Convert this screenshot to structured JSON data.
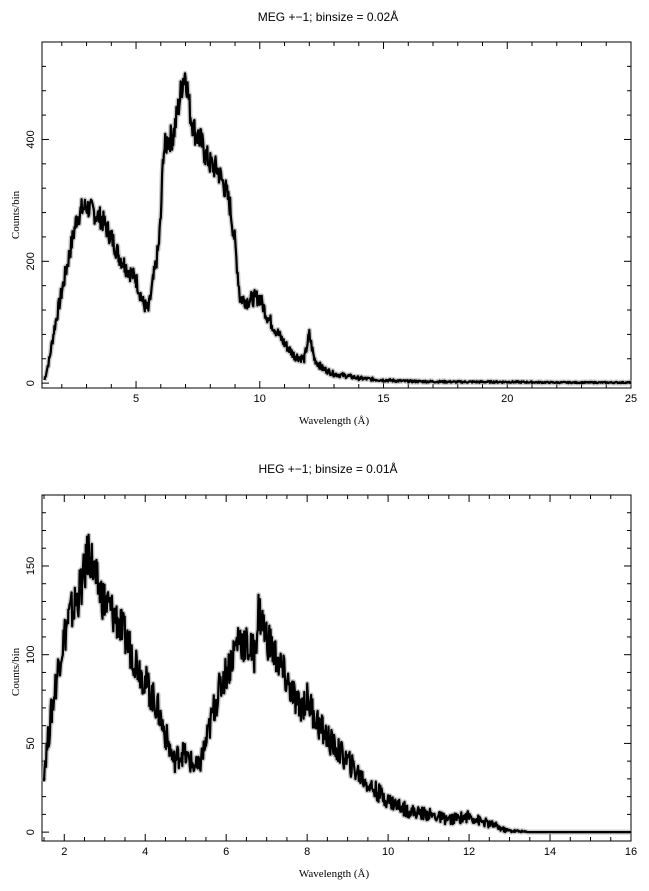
{
  "chart_data": [
    {
      "type": "line",
      "title": "MEG +−1; binsize = 0.02Å",
      "xlabel": "Wavelength (Å)",
      "ylabel": "Counts/bin",
      "xlim": [
        1.2,
        25
      ],
      "ylim": [
        -8,
        560
      ],
      "xticks": [
        5,
        10,
        15,
        20,
        25
      ],
      "yticks": [
        0,
        200,
        400
      ],
      "series": [
        {
          "x": [
            1.3,
            1.5,
            1.7,
            2.0,
            2.3,
            2.6,
            2.8,
            3.0,
            3.3,
            3.6,
            4.0,
            4.3,
            4.6,
            5.0,
            5.3,
            5.5,
            5.7,
            5.9,
            6.0,
            6.1,
            6.3,
            6.5,
            6.7,
            6.9,
            7.0,
            7.2,
            7.4,
            7.6,
            7.8,
            8.0,
            8.3,
            8.6,
            8.8,
            9.0,
            9.2,
            9.5,
            9.8,
            10.0,
            10.3,
            10.6,
            11.0,
            11.4,
            11.8,
            12.0,
            12.2,
            12.5,
            13.0,
            13.5,
            14.0,
            15.0,
            16.0,
            18.0,
            20.0,
            22.0,
            25.0
          ],
          "values": [
            5,
            40,
            90,
            150,
            210,
            270,
            285,
            290,
            280,
            270,
            240,
            210,
            190,
            170,
            130,
            120,
            170,
            220,
            270,
            380,
            400,
            405,
            450,
            500,
            510,
            440,
            410,
            400,
            375,
            360,
            350,
            320,
            290,
            230,
            140,
            135,
            140,
            140,
            110,
            90,
            65,
            45,
            40,
            80,
            40,
            25,
            15,
            12,
            8,
            5,
            3,
            2,
            2,
            1,
            1
          ]
        }
      ]
    },
    {
      "type": "line",
      "title": "HEG +−1; binsize = 0.01Å",
      "xlabel": "Wavelength (Å)",
      "ylabel": "Counts/bin",
      "xlim": [
        1.45,
        16
      ],
      "ylim": [
        -5,
        190
      ],
      "xticks": [
        2,
        4,
        6,
        8,
        10,
        12,
        14,
        16
      ],
      "yticks": [
        0,
        50,
        100,
        150
      ],
      "series": [
        {
          "x": [
            1.5,
            1.7,
            1.9,
            2.1,
            2.3,
            2.5,
            2.6,
            2.8,
            3.0,
            3.3,
            3.6,
            3.9,
            4.1,
            4.3,
            4.5,
            4.7,
            4.9,
            5.1,
            5.3,
            5.5,
            5.7,
            5.9,
            6.1,
            6.3,
            6.5,
            6.7,
            6.8,
            7.0,
            7.2,
            7.4,
            7.6,
            7.8,
            8.0,
            8.3,
            8.6,
            9.0,
            9.3,
            9.6,
            10.0,
            10.5,
            11.0,
            11.5,
            12.0,
            12.3,
            12.6,
            12.9,
            13.5,
            14.0,
            15.0,
            16.0
          ],
          "values": [
            35,
            70,
            100,
            120,
            130,
            145,
            160,
            140,
            130,
            120,
            105,
            90,
            80,
            70,
            55,
            40,
            45,
            40,
            35,
            50,
            70,
            85,
            95,
            110,
            105,
            100,
            125,
            110,
            100,
            90,
            80,
            70,
            75,
            60,
            50,
            40,
            32,
            25,
            18,
            12,
            10,
            7,
            9,
            6,
            4,
            1,
            0,
            0,
            0,
            0
          ]
        }
      ]
    }
  ]
}
